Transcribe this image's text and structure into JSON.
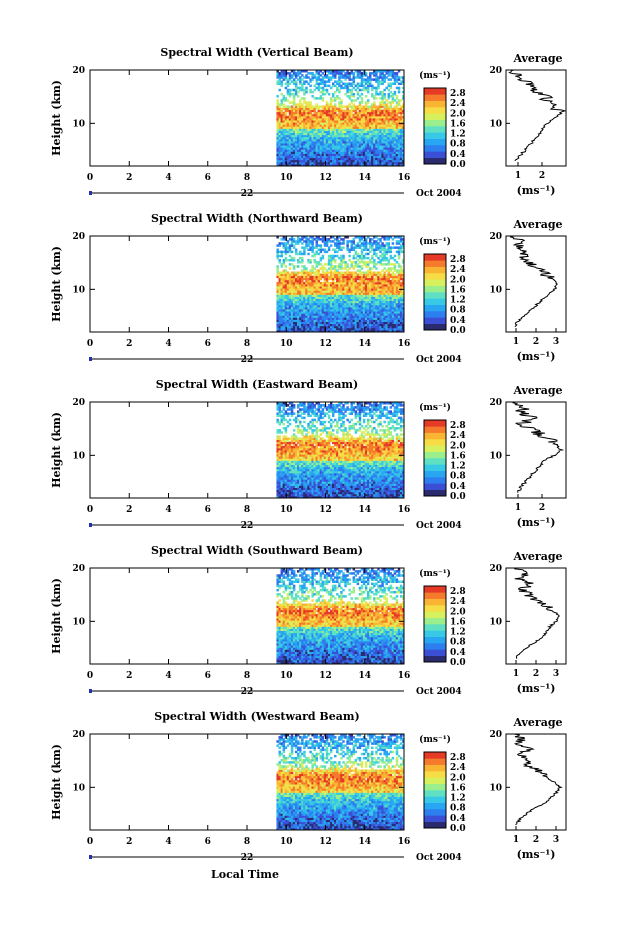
{
  "colors": {
    "scale": [
      "#2a2a6e",
      "#3a4fd6",
      "#2d7ff0",
      "#29a6f2",
      "#37c9e6",
      "#5fe0c2",
      "#9aee8c",
      "#d7f05e",
      "#f6dd45",
      "#f9b434",
      "#f57a2b",
      "#e53a26"
    ],
    "background": "#ffffff",
    "line": "#000000",
    "date_marker": "#2233aa"
  },
  "chart_data": [
    {
      "type": "heatmap",
      "title": "Spectral Width (Vertical Beam)",
      "ylabel": "Height (km)",
      "xlim": [
        0,
        16
      ],
      "ylim": [
        2,
        20
      ],
      "x_ticks": [
        "0",
        "2",
        "4",
        "6",
        "8",
        "10",
        "12",
        "14",
        "16"
      ],
      "y_ticks": [
        "20",
        "10"
      ],
      "date_label": "22",
      "date_right": "Oct 2004",
      "data_start_x": 9.5,
      "colorbar": {
        "unit": "(ms⁻¹)",
        "labels": [
          "2.8",
          "2.4",
          "2.0",
          "1.6",
          "1.2",
          "0.8",
          "0.4",
          "0.0"
        ]
      },
      "average": {
        "title": "Average",
        "xlabel": "(ms⁻¹)",
        "x_ticks": [
          "1",
          "2"
        ],
        "xlim": [
          0.5,
          3.0
        ],
        "y_ticks": [
          "20",
          "10"
        ],
        "profile": [
          [
            0.9,
            3
          ],
          [
            1.1,
            4
          ],
          [
            1.3,
            5
          ],
          [
            1.5,
            6
          ],
          [
            1.7,
            7
          ],
          [
            1.9,
            8
          ],
          [
            2.0,
            9
          ],
          [
            2.2,
            10
          ],
          [
            2.5,
            11
          ],
          [
            2.8,
            12
          ],
          [
            2.6,
            13
          ],
          [
            2.3,
            14
          ],
          [
            2.1,
            15
          ],
          [
            1.8,
            16
          ],
          [
            1.5,
            17
          ],
          [
            1.2,
            18
          ],
          [
            1.0,
            19
          ],
          [
            0.8,
            20
          ]
        ]
      }
    },
    {
      "type": "heatmap",
      "title": "Spectral Width (Northward Beam)",
      "ylabel": "Height (km)",
      "xlim": [
        0,
        16
      ],
      "ylim": [
        2,
        20
      ],
      "x_ticks": [
        "0",
        "2",
        "4",
        "6",
        "8",
        "10",
        "12",
        "14",
        "16"
      ],
      "y_ticks": [
        "20",
        "10"
      ],
      "date_label": "22",
      "date_right": "Oct 2004",
      "data_start_x": 9.5,
      "colorbar": {
        "unit": "(ms⁻¹)",
        "labels": [
          "2.8",
          "2.4",
          "2.0",
          "1.6",
          "1.2",
          "0.8",
          "0.4",
          "0.0"
        ]
      },
      "average": {
        "title": "Average",
        "xlabel": "(ms⁻¹)",
        "x_ticks": [
          "1",
          "2",
          "3"
        ],
        "xlim": [
          0.5,
          3.5
        ],
        "y_ticks": [
          "20",
          "10"
        ],
        "profile": [
          [
            0.9,
            3
          ],
          [
            1.1,
            4
          ],
          [
            1.4,
            5
          ],
          [
            1.7,
            6
          ],
          [
            2.0,
            7
          ],
          [
            2.3,
            8
          ],
          [
            2.6,
            9
          ],
          [
            2.9,
            10
          ],
          [
            3.1,
            11
          ],
          [
            2.8,
            12
          ],
          [
            2.4,
            13
          ],
          [
            2.0,
            14
          ],
          [
            1.6,
            15
          ],
          [
            1.3,
            16
          ],
          [
            1.6,
            17
          ],
          [
            1.1,
            18
          ],
          [
            1.4,
            19
          ],
          [
            0.9,
            20
          ]
        ]
      }
    },
    {
      "type": "heatmap",
      "title": "Spectral Width (Eastward Beam)",
      "ylabel": "Height (km)",
      "xlim": [
        0,
        16
      ],
      "ylim": [
        2,
        20
      ],
      "x_ticks": [
        "0",
        "2",
        "4",
        "6",
        "8",
        "10",
        "12",
        "14",
        "16"
      ],
      "y_ticks": [
        "20",
        "10"
      ],
      "date_label": "22",
      "date_right": "Oct 2004",
      "data_start_x": 9.5,
      "colorbar": {
        "unit": "(ms⁻¹)",
        "labels": [
          "2.8",
          "2.4",
          "2.0",
          "1.6",
          "1.2",
          "0.8",
          "0.4",
          "0.0"
        ]
      },
      "average": {
        "title": "Average",
        "xlabel": "(ms⁻¹)",
        "x_ticks": [
          "1",
          "2"
        ],
        "xlim": [
          0.5,
          3.0
        ],
        "y_ticks": [
          "20",
          "10"
        ],
        "profile": [
          [
            1.0,
            3
          ],
          [
            1.1,
            4
          ],
          [
            1.3,
            5
          ],
          [
            1.5,
            6
          ],
          [
            1.7,
            7
          ],
          [
            1.9,
            8
          ],
          [
            2.1,
            9
          ],
          [
            2.5,
            10
          ],
          [
            2.8,
            11
          ],
          [
            2.6,
            12
          ],
          [
            2.3,
            13
          ],
          [
            1.9,
            14
          ],
          [
            1.5,
            15
          ],
          [
            1.2,
            16
          ],
          [
            1.6,
            17
          ],
          [
            1.1,
            18
          ],
          [
            1.3,
            19
          ],
          [
            0.9,
            20
          ]
        ]
      }
    },
    {
      "type": "heatmap",
      "title": "Spectral Width (Southward Beam)",
      "ylabel": "Height (km)",
      "xlim": [
        0,
        16
      ],
      "ylim": [
        2,
        20
      ],
      "x_ticks": [
        "0",
        "2",
        "4",
        "6",
        "8",
        "10",
        "12",
        "14",
        "16"
      ],
      "y_ticks": [
        "20",
        "10"
      ],
      "date_label": "22",
      "date_right": "Oct 2004",
      "data_start_x": 9.5,
      "colorbar": {
        "unit": "(ms⁻¹)",
        "labels": [
          "2.8",
          "2.4",
          "2.0",
          "1.6",
          "1.2",
          "0.8",
          "0.4",
          "0.0"
        ]
      },
      "average": {
        "title": "Average",
        "xlabel": "(ms⁻¹)",
        "x_ticks": [
          "1",
          "2",
          "3"
        ],
        "xlim": [
          0.5,
          3.5
        ],
        "y_ticks": [
          "20",
          "10"
        ],
        "profile": [
          [
            1.0,
            3
          ],
          [
            1.2,
            4
          ],
          [
            1.5,
            5
          ],
          [
            1.9,
            6
          ],
          [
            2.3,
            7
          ],
          [
            2.5,
            8
          ],
          [
            2.7,
            9
          ],
          [
            3.0,
            10
          ],
          [
            3.2,
            11
          ],
          [
            2.8,
            12
          ],
          [
            2.5,
            13
          ],
          [
            2.0,
            14
          ],
          [
            1.6,
            15
          ],
          [
            1.3,
            16
          ],
          [
            1.8,
            17
          ],
          [
            1.2,
            18
          ],
          [
            1.4,
            19
          ],
          [
            1.0,
            20
          ]
        ]
      }
    },
    {
      "type": "heatmap",
      "title": "Spectral Width (Westward Beam)",
      "ylabel": "Height (km)",
      "xlim": [
        0,
        16
      ],
      "ylim": [
        2,
        20
      ],
      "x_ticks": [
        "0",
        "2",
        "4",
        "6",
        "8",
        "10",
        "12",
        "14",
        "16"
      ],
      "y_ticks": [
        "20",
        "10"
      ],
      "date_label": "22",
      "date_right": "Oct 2004",
      "data_start_x": 9.5,
      "colorbar": {
        "unit": "(ms⁻¹)",
        "labels": [
          "2.8",
          "2.4",
          "2.0",
          "1.6",
          "1.2",
          "0.8",
          "0.4",
          "0.0"
        ]
      },
      "average": {
        "title": "Average",
        "xlabel": "(ms⁻¹)",
        "x_ticks": [
          "1",
          "2",
          "3"
        ],
        "xlim": [
          0.5,
          3.5
        ],
        "y_ticks": [
          "20",
          "10"
        ],
        "profile": [
          [
            1.0,
            3
          ],
          [
            1.2,
            4
          ],
          [
            1.5,
            5
          ],
          [
            1.9,
            6
          ],
          [
            2.4,
            7
          ],
          [
            2.7,
            8
          ],
          [
            3.0,
            9
          ],
          [
            3.2,
            10
          ],
          [
            2.9,
            11
          ],
          [
            2.5,
            12
          ],
          [
            2.1,
            13
          ],
          [
            1.7,
            14
          ],
          [
            1.4,
            15
          ],
          [
            1.2,
            16
          ],
          [
            1.7,
            17
          ],
          [
            1.1,
            18
          ],
          [
            1.3,
            19
          ],
          [
            0.9,
            20
          ]
        ]
      }
    }
  ],
  "xlabel": "Local Time"
}
